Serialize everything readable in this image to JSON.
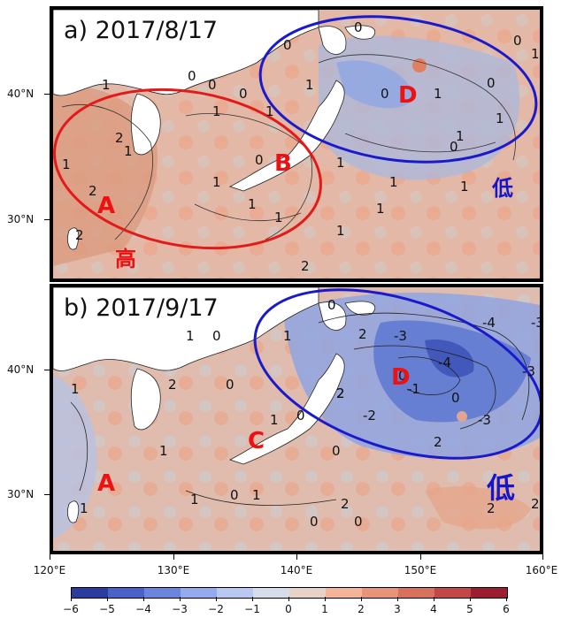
{
  "panels": [
    {
      "title": "a) 2017/8/17",
      "regions": [
        "A",
        "B",
        "D"
      ],
      "annotations": [
        "高",
        "低"
      ],
      "contour_labels": [
        "0",
        "0",
        "0",
        "0",
        "0",
        "0",
        "0",
        "0",
        "0",
        "0",
        "1",
        "1",
        "1",
        "1",
        "1",
        "1",
        "1",
        "1",
        "1",
        "1",
        "1",
        "1",
        "1",
        "1",
        "1",
        "1",
        "1",
        "1",
        "2",
        "2",
        "2",
        "2"
      ]
    },
    {
      "title": "b) 2017/9/17",
      "regions": [
        "A",
        "C",
        "D"
      ],
      "annotations": [
        "低"
      ],
      "contour_labels": [
        "0",
        "0",
        "0",
        "0",
        "0",
        "0",
        "0",
        "0",
        "0",
        "0",
        "1",
        "1",
        "1",
        "1",
        "1",
        "1",
        "1",
        "1",
        "2",
        "2",
        "2",
        "2",
        "2",
        "2",
        "2",
        "2",
        "-1",
        "-2",
        "-3",
        "-3",
        "-3",
        "-4",
        "-4",
        "-3"
      ]
    }
  ],
  "axes": {
    "latitude_labels": [
      "40°N",
      "30°N"
    ],
    "longitude_labels": [
      "120°E",
      "130°E",
      "140°E",
      "150°E",
      "160°E"
    ]
  },
  "colorbar": {
    "labels": [
      "−6",
      "−5",
      "−4",
      "−3",
      "−2",
      "−1",
      "0",
      "1",
      "2",
      "3",
      "4",
      "5",
      "6"
    ],
    "colors": [
      "#2c3b9e",
      "#4a62c8",
      "#6a86dc",
      "#93abec",
      "#b8c8f0",
      "#d6dcea",
      "#e8d2c8",
      "#f4b49a",
      "#e8947a",
      "#d8705e",
      "#c24848",
      "#9a1e30"
    ]
  },
  "colors": {
    "positive_field": "#e6b09a",
    "negative_field": "#8ea6e4",
    "land": "#ffffff",
    "high_ellipse": "#e41a1a",
    "low_ellipse": "#1a1acc",
    "region_text": "#ee1111",
    "low_text": "#1515cc"
  }
}
